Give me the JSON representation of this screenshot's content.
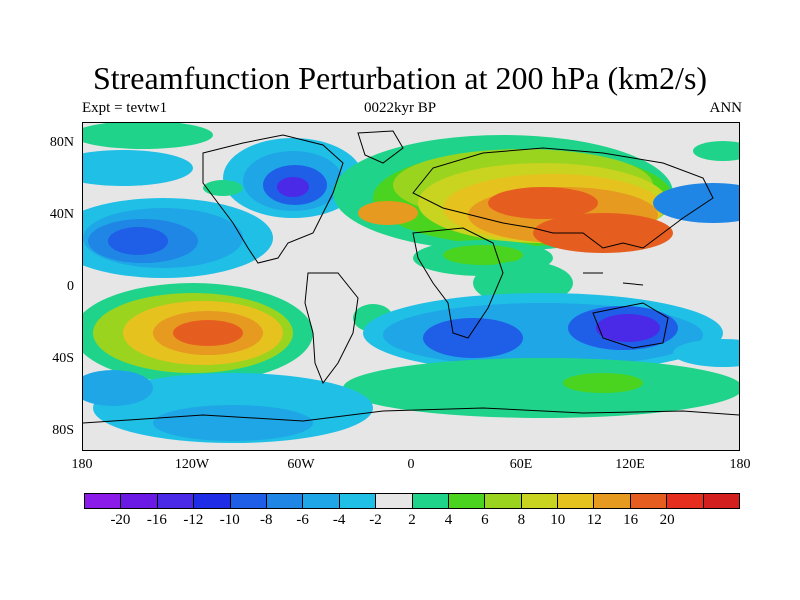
{
  "title": "Streamfunction Perturbation at 200 hPa (km2/s)",
  "subtitle_left": "Expt = tevtw1",
  "subtitle_center": "0022kyr BP",
  "subtitle_right": "ANN",
  "lat_labels": [
    "80N",
    "40N",
    "0",
    "40S",
    "80S"
  ],
  "lon_labels": [
    "180",
    "120W",
    "60W",
    "0",
    "60E",
    "120E",
    "180"
  ],
  "colorbar": {
    "colors": [
      "#8a1be8",
      "#6b1ae6",
      "#4a2ae6",
      "#1f2ee6",
      "#1f5ee6",
      "#1f86e6",
      "#1fa6e6",
      "#1fbfe6",
      "#e6e6e6",
      "#1fd48a",
      "#4ad41f",
      "#9ad41f",
      "#c8d41f",
      "#e6c21f",
      "#e69a1f",
      "#e65e1f",
      "#e62e1f",
      "#d41f1f"
    ],
    "labels": [
      "-20",
      "-16",
      "-12",
      "-10",
      "-8",
      "-6",
      "-4",
      "-2",
      "2",
      "4",
      "6",
      "8",
      "10",
      "12",
      "16",
      "20"
    ]
  }
}
